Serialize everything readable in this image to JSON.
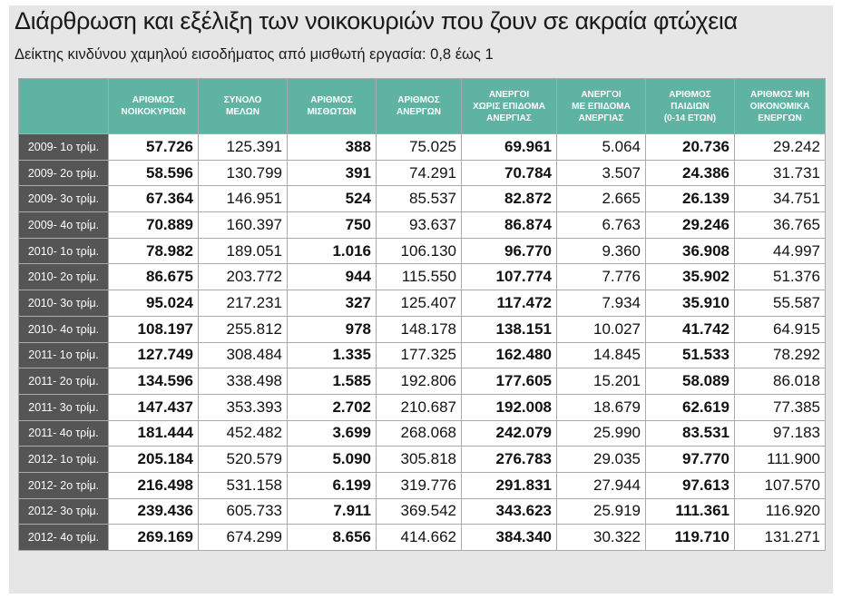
{
  "title": "Διάρθρωση και εξέλιξη των νοικοκυριών που ζουν σε ακραία φτώχεια",
  "subtitle": "Δείκτης κινδύνου χαμηλού εισοδήματος από μισθωτή εργασία: 0,8 έως 1",
  "colors": {
    "header_bg": "#5fb3a3",
    "row_label_bg": "#555555",
    "frame_bg": "#e6e6e6"
  },
  "headers": [
    [
      "ΑΡΙΘΜΟΣ",
      "ΝΟΙΚΟΚΥΡΙΩΝ"
    ],
    [
      "ΣΥΝΟΛΟ",
      "ΜΕΛΩΝ"
    ],
    [
      "ΑΡΙΘΜΟΣ",
      "ΜΙΣΘΩΤΩΝ"
    ],
    [
      "ΑΡΙΘΜΟΣ",
      "ΑΝΕΡΓΩΝ"
    ],
    [
      "ΑΝΕΡΓΟΙ",
      "ΧΩΡΙΣ ΕΠΙΔΟΜΑ",
      "ΑΝΕΡΓΙΑΣ"
    ],
    [
      "ΑΝΕΡΓΟΙ",
      "ΜΕ ΕΠΙΔΟΜΑ",
      "ΑΝΕΡΓΙΑΣ"
    ],
    [
      "ΑΡΙΘΜΟΣ",
      "ΠΑΙΔΙΩΝ",
      "(0-14 ΕΤΩΝ)"
    ],
    [
      "ΑΡΙΘΜΟΣ ΜΗ",
      "ΟΙΚΟΝΟΜΙΚΑ",
      "ΕΝΕΡΓΩΝ"
    ]
  ],
  "bold_columns": [
    0,
    2,
    4,
    6
  ],
  "rows": [
    {
      "label": "2009- 1ο τρίμ.",
      "values": [
        "57.726",
        "125.391",
        "388",
        "75.025",
        "69.961",
        "5.064",
        "20.736",
        "29.242"
      ]
    },
    {
      "label": "2009- 2ο τρίμ.",
      "values": [
        "58.596",
        "130.799",
        "391",
        "74.291",
        "70.784",
        "3.507",
        "24.386",
        "31.731"
      ]
    },
    {
      "label": "2009- 3ο τρίμ.",
      "values": [
        "67.364",
        "146.951",
        "524",
        "85.537",
        "82.872",
        "2.665",
        "26.139",
        "34.751"
      ]
    },
    {
      "label": "2009- 4ο τρίμ.",
      "values": [
        "70.889",
        "160.397",
        "750",
        "93.637",
        "86.874",
        "6.763",
        "29.246",
        "36.765"
      ]
    },
    {
      "label": "2010- 1ο τρίμ.",
      "values": [
        "78.982",
        "189.051",
        "1.016",
        "106.130",
        "96.770",
        "9.360",
        "36.908",
        "44.997"
      ]
    },
    {
      "label": "2010- 2ο τρίμ.",
      "values": [
        "86.675",
        "203.772",
        "944",
        "115.550",
        "107.774",
        "7.776",
        "35.902",
        "51.376"
      ]
    },
    {
      "label": "2010- 3ο τρίμ.",
      "values": [
        "95.024",
        "217.231",
        "327",
        "125.407",
        "117.472",
        "7.934",
        "35.910",
        "55.587"
      ]
    },
    {
      "label": "2010- 4ο τρίμ.",
      "values": [
        "108.197",
        "255.812",
        "978",
        "148.178",
        "138.151",
        "10.027",
        "41.742",
        "64.915"
      ]
    },
    {
      "label": "2011- 1ο τρίμ.",
      "values": [
        "127.749",
        "308.484",
        "1.335",
        "177.325",
        "162.480",
        "14.845",
        "51.533",
        "78.292"
      ]
    },
    {
      "label": "2011- 2ο τρίμ.",
      "values": [
        "134.596",
        "338.498",
        "1.585",
        "192.806",
        "177.605",
        "15.201",
        "58.089",
        "86.018"
      ]
    },
    {
      "label": "2011- 3ο τρίμ.",
      "values": [
        "147.437",
        "353.393",
        "2.702",
        "210.687",
        "192.008",
        "18.679",
        "62.619",
        "77.385"
      ]
    },
    {
      "label": "2011- 4ο τρίμ.",
      "values": [
        "181.444",
        "452.482",
        "3.699",
        "268.068",
        "242.079",
        "25.990",
        "83.531",
        "97.183"
      ]
    },
    {
      "label": "2012- 1ο τρίμ.",
      "values": [
        "205.184",
        "520.579",
        "5.090",
        "305.818",
        "276.783",
        "29.035",
        "97.770",
        "111.900"
      ]
    },
    {
      "label": "2012- 2ο τρίμ.",
      "values": [
        "216.498",
        "531.158",
        "6.199",
        "319.776",
        "291.831",
        "27.944",
        "97.613",
        "107.570"
      ]
    },
    {
      "label": "2012- 3ο τρίμ.",
      "values": [
        "239.436",
        "605.733",
        "7.911",
        "369.542",
        "343.623",
        "25.919",
        "111.361",
        "116.920"
      ]
    },
    {
      "label": "2012- 4ο τρίμ.",
      "values": [
        "269.169",
        "674.299",
        "8.656",
        "414.662",
        "384.340",
        "30.322",
        "119.710",
        "131.271"
      ]
    }
  ]
}
